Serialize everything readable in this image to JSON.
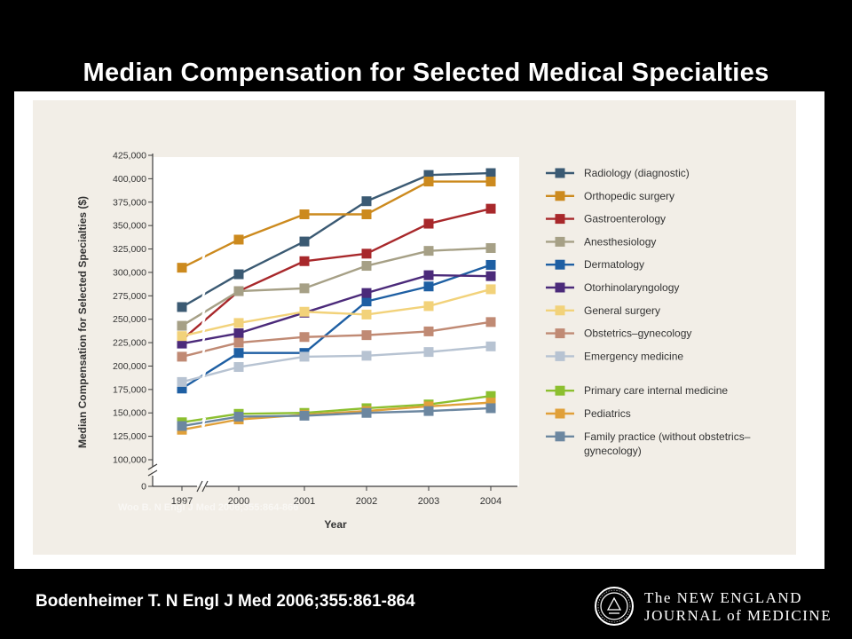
{
  "slide": {
    "title": "Median Compensation for Selected Medical Specialties",
    "citation": "Bodenheimer T. N Engl J Med 2006;355:861-864",
    "watermark": "Woo B. N Engl J Med 2006;355:864-866",
    "logo": {
      "line1": "The NEW ENGLAND",
      "line2": "JOURNAL of MEDICINE"
    }
  },
  "chart_data": {
    "type": "line",
    "title": "",
    "xlabel": "Year",
    "ylabel": "Median Compensation for Selected Specialties ($)",
    "categories": [
      "1997",
      "2000",
      "2001",
      "2002",
      "2003",
      "2004"
    ],
    "yticks": [
      "0",
      "100,000",
      "125,000",
      "150,000",
      "175,000",
      "200,000",
      "225,000",
      "250,000",
      "275,000",
      "300,000",
      "325,000",
      "350,000",
      "375,000",
      "400,000",
      "425,000"
    ],
    "ylim": [
      0,
      425000
    ],
    "axis_break": true,
    "legend_placement": "right",
    "grid": false,
    "series": [
      {
        "name": "Radiology (diagnostic)",
        "color": "#3b5a73",
        "values": [
          263000,
          298000,
          333000,
          376000,
          404000,
          406000
        ]
      },
      {
        "name": "Orthopedic surgery",
        "color": "#cc8a1e",
        "values": [
          305000,
          335000,
          362000,
          362000,
          397000,
          397000
        ]
      },
      {
        "name": "Gastroenterology",
        "color": "#a8282b",
        "values": [
          228000,
          280000,
          312000,
          320000,
          352000,
          368000
        ]
      },
      {
        "name": "Anesthesiology",
        "color": "#a6a086",
        "values": [
          243000,
          280000,
          283000,
          307000,
          323000,
          326000
        ]
      },
      {
        "name": "Dermatology",
        "color": "#1e5fa3",
        "values": [
          176000,
          214000,
          214000,
          269000,
          285000,
          308000
        ]
      },
      {
        "name": "Otorhinolaryngology",
        "color": "#4b2a7a",
        "values": [
          224000,
          235000,
          257000,
          278000,
          297000,
          296000
        ]
      },
      {
        "name": "General surgery",
        "color": "#f2d27a",
        "values": [
          232000,
          246000,
          258000,
          255000,
          264000,
          282000
        ]
      },
      {
        "name": "Obstetrics–gynecology",
        "color": "#c08a74",
        "values": [
          210000,
          225000,
          231000,
          233000,
          237000,
          247000
        ]
      },
      {
        "name": "Emergency medicine",
        "color": "#b7c3d2",
        "values": [
          183000,
          199000,
          210000,
          211000,
          215000,
          221000
        ]
      },
      {
        "name": "Primary care internal medicine",
        "color": "#8cbf2f",
        "values": [
          140000,
          149000,
          150000,
          155000,
          159000,
          168000
        ]
      },
      {
        "name": "Pediatrics",
        "color": "#e0a03a",
        "values": [
          132000,
          143000,
          148000,
          152000,
          157000,
          161000
        ]
      },
      {
        "name": "Family practice (without obstetrics–gynecology)",
        "color": "#6c87a0",
        "values": [
          136000,
          146000,
          147000,
          150000,
          152000,
          155000
        ]
      }
    ]
  }
}
